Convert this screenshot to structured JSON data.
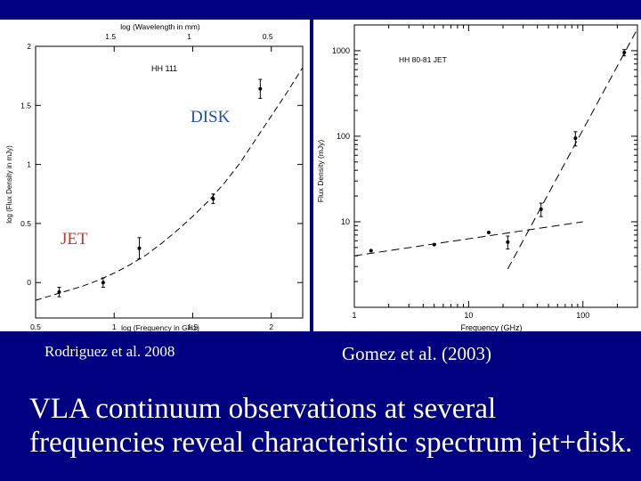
{
  "slide": {
    "caption_left": "Rodriguez et al. 2008",
    "caption_right": "Gomez et al. (2003)",
    "summary": "VLA continuum observations at several frequencies reveal characteristic spectrum jet+disk."
  },
  "colors": {
    "background": "#000080",
    "disk_label": "#1f4fb4",
    "jet_label": "#c0392b"
  },
  "chart_data": [
    {
      "type": "scatter",
      "title": "HH 111",
      "xlabel": "log (Frequency in GHz)",
      "ylabel": "log (Flux Density in mJy)",
      "top_axis_label": "log (Wavelength in mm)",
      "xlim": [
        0.5,
        2.2
      ],
      "ylim": [
        -0.3,
        2.0
      ],
      "x_ticks": [
        "0.5",
        "1",
        "1.5",
        "2"
      ],
      "y_ticks": [
        "0",
        "0.5",
        "1",
        "1.5",
        "2"
      ],
      "top_ticks": [
        "1.5",
        "1",
        "0.5"
      ],
      "annotations": [
        "DISK",
        "JET"
      ],
      "series": [
        {
          "x": [
            0.65,
            0.93,
            1.16,
            1.63,
            1.93
          ],
          "y": [
            -0.08,
            0.0,
            0.29,
            0.71,
            1.64
          ],
          "yerr": [
            0.04,
            0.04,
            0.09,
            0.04,
            0.08
          ]
        }
      ],
      "fit_curve": {
        "x": [
          0.5,
          0.6,
          0.7,
          0.8,
          0.9,
          1.0,
          1.1,
          1.2,
          1.3,
          1.4,
          1.5,
          1.6,
          1.7,
          1.8,
          1.9,
          2.0,
          2.1,
          2.2
        ],
        "y": [
          -0.15,
          -0.11,
          -0.07,
          -0.03,
          0.02,
          0.08,
          0.15,
          0.23,
          0.33,
          0.44,
          0.56,
          0.69,
          0.84,
          1.01,
          1.21,
          1.41,
          1.61,
          1.82
        ]
      }
    },
    {
      "type": "scatter",
      "title": "HH 80-81 JET",
      "xlabel": "Frequency (GHz)",
      "ylabel": "Flux Density (mJy)",
      "xscale": "log",
      "yscale": "log",
      "xlim": [
        1,
        300
      ],
      "ylim": [
        1,
        2000
      ],
      "x_ticks": [
        "1",
        "10",
        "100"
      ],
      "y_ticks": [
        "10",
        "100",
        "1000"
      ],
      "series": [
        {
          "x": [
            1.4,
            5,
            15,
            22,
            43,
            86,
            230
          ],
          "y": [
            4.6,
            5.4,
            7.5,
            5.8,
            14,
            95,
            950
          ],
          "yerr": [
            0,
            0,
            0,
            1.0,
            2.5,
            18,
            80
          ]
        }
      ],
      "fit_lines": [
        {
          "x": [
            1,
            100
          ],
          "y": [
            4.0,
            10.0
          ]
        },
        {
          "x": [
            22,
            300
          ],
          "y": [
            2.8,
            1800
          ]
        }
      ]
    }
  ]
}
